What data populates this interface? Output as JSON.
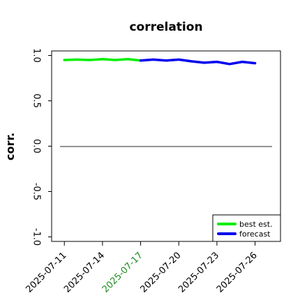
{
  "chart_data": {
    "type": "line",
    "title": "correlation",
    "xlabel": "",
    "ylabel": "corr.",
    "xlim": [
      "2025-07-10",
      "2025-07-28"
    ],
    "ylim": [
      -1.05,
      1.05
    ],
    "xticks": [
      "2025-07-11",
      "2025-07-14",
      "2025-07-17",
      "2025-07-20",
      "2025-07-23",
      "2025-07-26"
    ],
    "yticks": [
      "-1.0",
      "-0.5",
      "0.0",
      "0.5",
      "1.0"
    ],
    "ytick_values": [
      -1.0,
      -0.5,
      0.0,
      0.5,
      1.0
    ],
    "highlighted_xtick": "2025-07-17",
    "highlight_color": "#228b22",
    "zero_line": 0.0,
    "grid": false,
    "legend_position": "lower-right",
    "series": [
      {
        "name": "best est.",
        "color": "#00ee00",
        "x": [
          "2025-07-11",
          "2025-07-12",
          "2025-07-13",
          "2025-07-14",
          "2025-07-15",
          "2025-07-16",
          "2025-07-17"
        ],
        "y": [
          0.95,
          0.955,
          0.95,
          0.96,
          0.95,
          0.96,
          0.945
        ]
      },
      {
        "name": "forecast",
        "color": "#0000ee",
        "x": [
          "2025-07-17",
          "2025-07-18",
          "2025-07-19",
          "2025-07-20",
          "2025-07-21",
          "2025-07-22",
          "2025-07-23",
          "2025-07-24",
          "2025-07-25",
          "2025-07-26"
        ],
        "y": [
          0.945,
          0.955,
          0.945,
          0.955,
          0.935,
          0.92,
          0.93,
          0.905,
          0.93,
          0.915
        ]
      }
    ]
  }
}
